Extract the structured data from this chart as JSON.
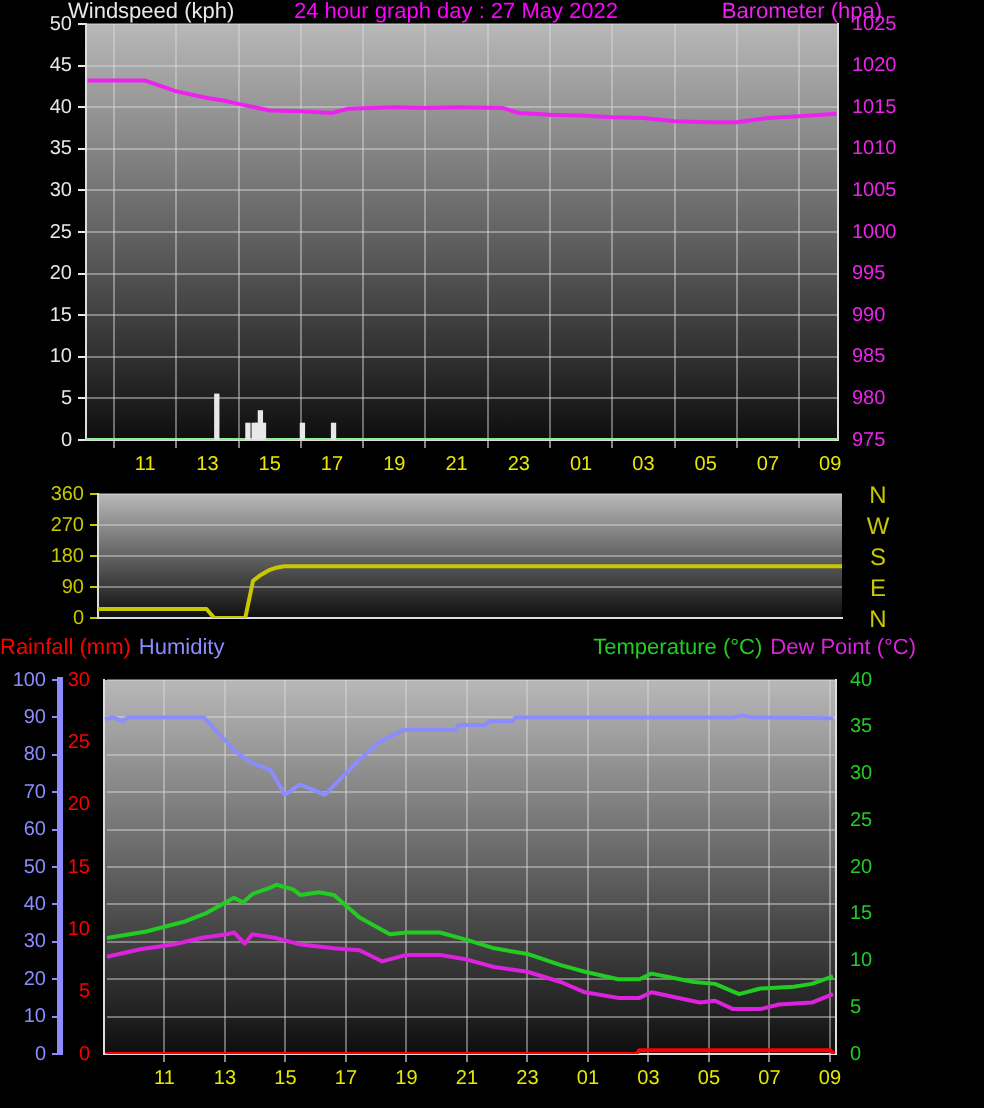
{
  "chart_data": [
    {
      "type": "line",
      "title": "24 hour graph day : 27 May 2022",
      "ylabel": "Windspeed (kph)",
      "y2label": "Barometer (hpa)",
      "xlim": [
        "2022-05-26T09:06",
        "2022-05-27T09:15"
      ],
      "xticks": [
        {
          "value": "2022-05-26T11:00",
          "label": "11"
        },
        {
          "value": "2022-05-26T13:00",
          "label": "13"
        },
        {
          "value": "2022-05-26T15:00",
          "label": "15"
        },
        {
          "value": "2022-05-26T17:00",
          "label": "17"
        },
        {
          "value": "2022-05-26T19:00",
          "label": "19"
        },
        {
          "value": "2022-05-26T21:00",
          "label": "21"
        },
        {
          "value": "2022-05-26T23:00",
          "label": "23"
        },
        {
          "value": "2022-05-27T01:00",
          "label": "01"
        },
        {
          "value": "2022-05-27T03:00",
          "label": "03"
        },
        {
          "value": "2022-05-27T05:00",
          "label": "05"
        },
        {
          "value": "2022-05-27T07:00",
          "label": "07"
        },
        {
          "value": "2022-05-27T09:00",
          "label": "09"
        }
      ],
      "ylim": [
        0,
        50
      ],
      "yticks": [
        0,
        5,
        10,
        15,
        20,
        25,
        30,
        35,
        40,
        45,
        50
      ],
      "y2lim": [
        975,
        1025
      ],
      "y2ticks": [
        975,
        980,
        985,
        990,
        995,
        1000,
        1005,
        1010,
        1015,
        1020,
        1025
      ],
      "grid": true,
      "legend": false,
      "marker": "none",
      "line_style": "solid",
      "series": [
        {
          "type": "bar",
          "color": "#e8e8e8",
          "x": [
            "2022-05-26T13:18",
            "2022-05-26T14:18",
            "2022-05-26T14:30",
            "2022-05-26T14:36",
            "2022-05-26T14:42",
            "2022-05-26T14:48",
            "2022-05-26T16:03",
            "2022-05-26T17:03"
          ],
          "values": [
            5.5,
            2,
            2,
            2,
            3.5,
            2,
            2,
            2
          ]
        },
        {
          "color": "#90ee90",
          "x": [
            "2022-05-26T09:06",
            "2022-05-27T09:15"
          ],
          "values": [
            0,
            0
          ]
        },
        {
          "color": "#ee22ee",
          "axis": "y2",
          "x": [
            "2022-05-26T09:09",
            "2022-05-26T11:00",
            "2022-05-26T12:00",
            "2022-05-26T13:00",
            "2022-05-26T13:30",
            "2022-05-26T14:00",
            "2022-05-26T15:00",
            "2022-05-26T16:00",
            "2022-05-26T17:00",
            "2022-05-26T17:30",
            "2022-05-26T19:00",
            "2022-05-26T20:00",
            "2022-05-26T21:00",
            "2022-05-26T22:30",
            "2022-05-26T23:00",
            "2022-05-27T00:00",
            "2022-05-27T01:00",
            "2022-05-27T02:00",
            "2022-05-27T03:00",
            "2022-05-27T04:00",
            "2022-05-27T05:00",
            "2022-05-27T06:00",
            "2022-05-27T07:00",
            "2022-05-27T08:00",
            "2022-05-27T09:12"
          ],
          "values": [
            1018.2,
            1018.2,
            1016.9,
            1016.1,
            1015.8,
            1015.4,
            1014.6,
            1014.5,
            1014.3,
            1014.8,
            1015.0,
            1014.9,
            1015.0,
            1014.9,
            1014.3,
            1014.1,
            1014.0,
            1013.8,
            1013.7,
            1013.3,
            1013.2,
            1013.2,
            1013.7,
            1013.9,
            1014.2
          ]
        }
      ]
    },
    {
      "type": "line",
      "categories": [
        null,
        null,
        null,
        null,
        null,
        null,
        null,
        null,
        null,
        null,
        null,
        null,
        null,
        null,
        null,
        null,
        null,
        null,
        null,
        null,
        null,
        null,
        null,
        null,
        null,
        null,
        null,
        null,
        null,
        null,
        null,
        null,
        null,
        null,
        null,
        null,
        null,
        null,
        null,
        null,
        null,
        null,
        null,
        null,
        null,
        null,
        null,
        null,
        null,
        null,
        null,
        null,
        null,
        null,
        null,
        null,
        null,
        null,
        null,
        null,
        null,
        null,
        null,
        null,
        null,
        null,
        null,
        null,
        null,
        null,
        null,
        null,
        null,
        null,
        null,
        null,
        null,
        null,
        null,
        null,
        null,
        null,
        null,
        null,
        null,
        null,
        null,
        null,
        null,
        null,
        null,
        null,
        null,
        null,
        null,
        null,
        null
      ],
      "ylim": [
        0,
        360
      ],
      "yticks": [
        0,
        90,
        180,
        270,
        360
      ],
      "tick_labels": "y",
      "grid": "y",
      "legend": false,
      "marker": "none",
      "line_style": "solid",
      "annotations": [
        "N",
        "W",
        "S",
        "E",
        "N"
      ],
      "series": [
        {
          "color": "#c8c800",
          "values": [
            26,
            26,
            26,
            26,
            26,
            26,
            26,
            26,
            26,
            26,
            26,
            26,
            26,
            26,
            26,
            0,
            0,
            0,
            0,
            0,
            108,
            125,
            138,
            146,
            150,
            150,
            150,
            150,
            150,
            150,
            150,
            150,
            150,
            150,
            150,
            150,
            150,
            150,
            150,
            150,
            150,
            150,
            150,
            150,
            150,
            150,
            150,
            150,
            150,
            150,
            150,
            150,
            150,
            150,
            150,
            150,
            150,
            150,
            150,
            150,
            150,
            150,
            150,
            150,
            150,
            150,
            150,
            150,
            150,
            150,
            150,
            150,
            150,
            150,
            150,
            150,
            150,
            150,
            150,
            150,
            150,
            150,
            150,
            150,
            150,
            150,
            150,
            150,
            150,
            150,
            150,
            150,
            150,
            150,
            150,
            150,
            150
          ]
        }
      ]
    },
    {
      "type": "line",
      "xlim": [
        "2022-05-26T09:00",
        "2022-05-27T09:12"
      ],
      "xticks": [
        {
          "value": "2022-05-26T11:00",
          "label": "11"
        },
        {
          "value": "2022-05-26T13:00",
          "label": "13"
        },
        {
          "value": "2022-05-26T15:00",
          "label": "15"
        },
        {
          "value": "2022-05-26T17:00",
          "label": "17"
        },
        {
          "value": "2022-05-26T19:00",
          "label": "19"
        },
        {
          "value": "2022-05-26T21:00",
          "label": "21"
        },
        {
          "value": "2022-05-26T23:00",
          "label": "23"
        },
        {
          "value": "2022-05-27T01:00",
          "label": "01"
        },
        {
          "value": "2022-05-27T03:00",
          "label": "03"
        },
        {
          "value": "2022-05-27T05:00",
          "label": "05"
        },
        {
          "value": "2022-05-27T07:00",
          "label": "07"
        },
        {
          "value": "2022-05-27T09:00",
          "label": "09"
        }
      ],
      "ylim": [
        0,
        100
      ],
      "yticks": [
        0,
        10,
        20,
        30,
        40,
        50,
        60,
        70,
        80,
        90,
        100
      ],
      "y2lim": [
        0,
        30
      ],
      "y2ticks": [
        0,
        5,
        10,
        15,
        20,
        25,
        30
      ],
      "y3lim": [
        0,
        40
      ],
      "y3ticks": [
        0,
        5,
        10,
        15,
        20,
        25,
        30,
        35,
        40
      ],
      "grid": true,
      "legend": "top",
      "marker": "none",
      "line_style": "solid",
      "series": [
        {
          "name": "Rainfall (mm)",
          "color": "#ff0000",
          "axis": "y2",
          "x": [
            "2022-05-26T09:03",
            "2022-05-27T02:36",
            "2022-05-27T02:42",
            "2022-05-27T09:00",
            "2022-05-27T09:09"
          ],
          "values": [
            0,
            0,
            0.3,
            0.3,
            0
          ]
        },
        {
          "name": "Humidity",
          "color": "#8c8cff",
          "x": [
            "2022-05-26T09:02",
            "2022-05-26T09:18",
            "2022-05-26T09:36",
            "2022-05-26T09:48",
            "2022-05-26T12:18",
            "2022-05-26T12:45",
            "2022-05-26T13:24",
            "2022-05-26T13:51",
            "2022-05-26T14:30",
            "2022-05-26T14:59",
            "2022-05-26T15:28",
            "2022-05-26T15:54",
            "2022-05-26T16:18",
            "2022-05-26T16:34",
            "2022-05-26T17:27",
            "2022-05-26T18:06",
            "2022-05-26T18:54",
            "2022-05-26T20:36",
            "2022-05-26T20:45",
            "2022-05-26T21:36",
            "2022-05-26T21:45",
            "2022-05-26T22:30",
            "2022-05-26T22:36",
            "2022-05-27T05:48",
            "2022-05-27T06:06",
            "2022-05-27T06:24",
            "2022-05-27T09:06"
          ],
          "values": [
            89.5,
            90,
            89,
            90,
            90,
            86,
            80.6,
            78,
            76,
            69.3,
            72,
            70.7,
            69.3,
            71.5,
            78.7,
            83.4,
            86.6,
            86.6,
            88,
            88,
            89,
            89,
            90,
            90,
            90.5,
            90,
            89.8
          ]
        },
        {
          "name": "Temperature (°C)",
          "color": "#22cc22",
          "axis": "y3",
          "x": [
            "2022-05-26T09:06",
            "2022-05-26T10:24",
            "2022-05-26T11:42",
            "2022-05-26T12:24",
            "2022-05-26T13:18",
            "2022-05-26T13:36",
            "2022-05-26T13:54",
            "2022-05-26T14:30",
            "2022-05-26T14:42",
            "2022-05-26T15:15",
            "2022-05-26T15:30",
            "2022-05-26T16:06",
            "2022-05-26T16:36",
            "2022-05-26T17:27",
            "2022-05-26T18:27",
            "2022-05-26T19:00",
            "2022-05-26T20:06",
            "2022-05-26T21:00",
            "2022-05-26T21:54",
            "2022-05-26T23:00",
            "2022-05-27T00:06",
            "2022-05-27T00:54",
            "2022-05-27T02:00",
            "2022-05-27T02:42",
            "2022-05-27T03:06",
            "2022-05-27T04:30",
            "2022-05-27T05:12",
            "2022-05-27T06:00",
            "2022-05-27T06:42",
            "2022-05-27T07:48",
            "2022-05-27T08:24",
            "2022-05-27T09:06"
          ],
          "values": [
            12.4,
            13.1,
            14.2,
            15.1,
            16.7,
            16.2,
            17.1,
            17.8,
            18.1,
            17.6,
            17.0,
            17.3,
            17.0,
            14.6,
            12.8,
            13.0,
            13.0,
            12.2,
            11.3,
            10.7,
            9.5,
            8.8,
            8.0,
            8.0,
            8.6,
            7.7,
            7.5,
            6.4,
            7.0,
            7.2,
            7.5,
            8.3
          ]
        },
        {
          "name": "Dew Point (°C)",
          "color": "#dd22dd",
          "axis": "y3",
          "x": [
            "2022-05-26T09:06",
            "2022-05-26T10:12",
            "2022-05-26T11:18",
            "2022-05-26T12:12",
            "2022-05-26T13:03",
            "2022-05-26T13:18",
            "2022-05-26T13:39",
            "2022-05-26T13:54",
            "2022-05-26T14:42",
            "2022-05-26T15:30",
            "2022-05-26T16:36",
            "2022-05-26T17:27",
            "2022-05-26T18:12",
            "2022-05-26T19:00",
            "2022-05-26T20:06",
            "2022-05-26T21:00",
            "2022-05-26T21:54",
            "2022-05-26T23:00",
            "2022-05-27T00:06",
            "2022-05-27T00:54",
            "2022-05-27T02:00",
            "2022-05-27T02:42",
            "2022-05-27T03:06",
            "2022-05-27T04:42",
            "2022-05-27T05:12",
            "2022-05-27T05:48",
            "2022-05-27T06:42",
            "2022-05-27T07:18",
            "2022-05-27T08:24",
            "2022-05-27T09:06"
          ],
          "values": [
            10.4,
            11.2,
            11.7,
            12.4,
            12.8,
            13.0,
            11.8,
            12.8,
            12.4,
            11.7,
            11.3,
            11.1,
            9.9,
            10.6,
            10.6,
            10.1,
            9.3,
            8.8,
            7.7,
            6.6,
            6.0,
            6.0,
            6.6,
            5.5,
            5.7,
            4.8,
            4.8,
            5.3,
            5.5,
            6.4
          ]
        }
      ]
    }
  ]
}
